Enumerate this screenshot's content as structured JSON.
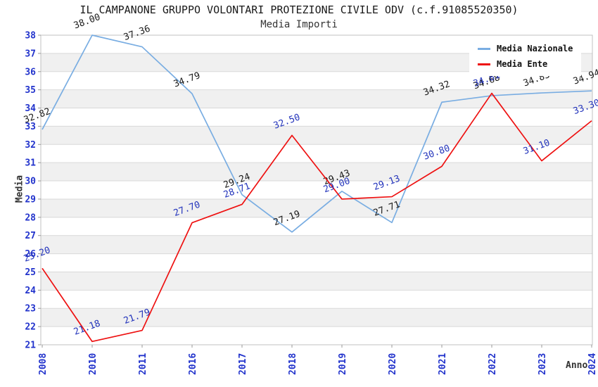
{
  "title": "IL CAMPANONE GRUPPO VOLONTARI PROTEZIONE CIVILE ODV (c.f.91085520350)",
  "subtitle": "Media Importi",
  "colors": {
    "axis_tick": "#2233cc",
    "grid": "#d9d9d9",
    "band": "#f0f0f0",
    "border": "#c0c0c0",
    "tick_mark": "#999999",
    "axis_title": "#333333"
  },
  "chart_data": {
    "type": "line",
    "categories": [
      "2008",
      "2010",
      "2011",
      "2016",
      "2017",
      "2018",
      "2019",
      "2020",
      "2021",
      "2022",
      "2023",
      "2024"
    ],
    "series": [
      {
        "name": "Media Nazionale",
        "color": "#79ade2",
        "label_color": "#1a1a1a",
        "values": [
          32.82,
          38.0,
          37.36,
          34.79,
          29.24,
          27.19,
          29.43,
          27.71,
          34.32,
          34.68,
          34.83,
          34.94
        ]
      },
      {
        "name": "Media Ente",
        "color": "#ee1111",
        "label_color": "#2233bb",
        "values": [
          25.2,
          21.18,
          21.79,
          27.7,
          28.71,
          32.5,
          29.0,
          29.13,
          30.8,
          34.81,
          31.1,
          33.3
        ]
      }
    ],
    "xlabel": "Anno",
    "ylabel": "Media",
    "ylim": [
      21,
      38
    ],
    "ytick_step": 1,
    "grid": true,
    "legend_position": "top-right"
  }
}
